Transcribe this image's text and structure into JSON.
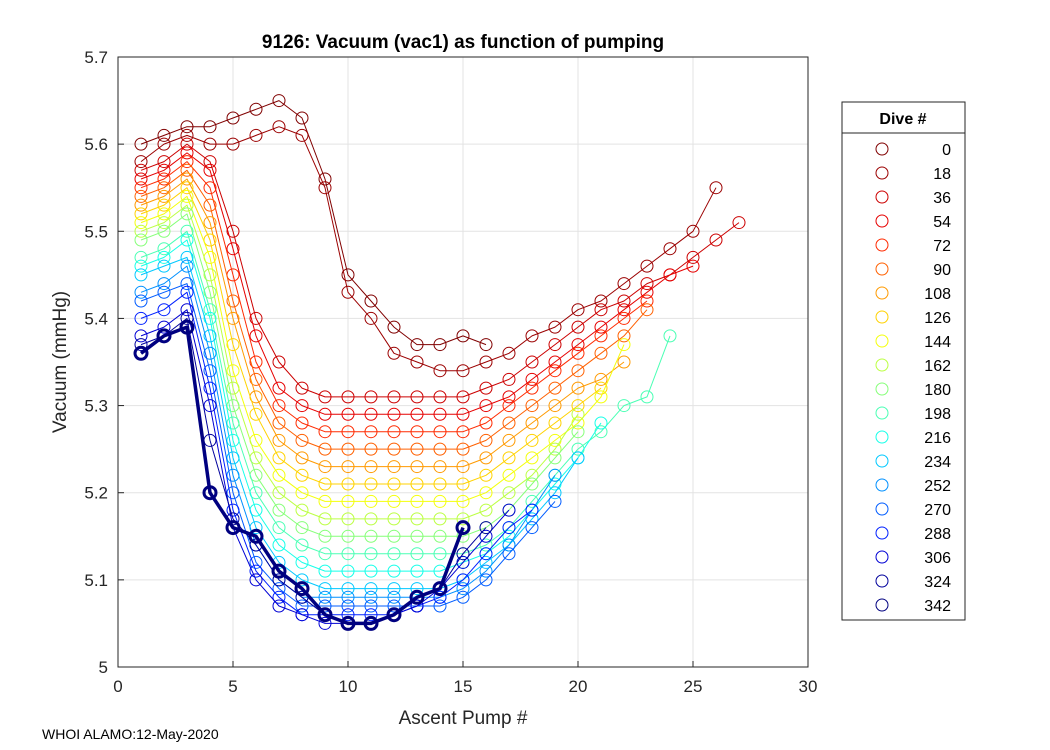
{
  "chart_data": {
    "type": "line",
    "title": "9126: Vacuum (vac1) as function of pumping",
    "xlabel": "Ascent Pump #",
    "ylabel": "Vacuum (mmHg)",
    "xlim": [
      0,
      30
    ],
    "ylim": [
      5,
      5.7
    ],
    "xticks": [
      0,
      5,
      10,
      15,
      20,
      25,
      30
    ],
    "yticks": [
      5,
      5.1,
      5.2,
      5.3,
      5.4,
      5.5,
      5.6,
      5.7
    ],
    "ytick_labels": [
      "5",
      "5.1",
      "5.2",
      "5.3",
      "5.4",
      "5.5",
      "5.6",
      "5.7"
    ],
    "grid": true,
    "legend_position": "right",
    "legend": {
      "title": "Dive #",
      "entries": [
        "0",
        "18",
        "36",
        "54",
        "72",
        "90",
        "108",
        "126",
        "144",
        "162",
        "180",
        "198",
        "216",
        "234",
        "252",
        "270",
        "288",
        "306",
        "324",
        "342"
      ],
      "colors": [
        "#800000",
        "#9b0000",
        "#cc0000",
        "#e60000",
        "#ff2a00",
        "#ff6000",
        "#ff9a00",
        "#ffd200",
        "#f4ff0b",
        "#bcff43",
        "#86ff79",
        "#4affb4",
        "#16ffe9",
        "#00c8ff",
        "#0090ff",
        "#005cff",
        "#0020ff",
        "#0000d4",
        "#00009c",
        "#000080"
      ]
    },
    "marker": "open-circle",
    "series": [
      {
        "name": "0",
        "color": "#800000",
        "x": [
          1,
          2,
          3,
          4,
          5,
          6,
          7,
          8,
          9,
          10,
          11,
          12,
          13,
          14,
          15,
          16
        ],
        "y": [
          5.6,
          5.61,
          5.62,
          5.62,
          5.63,
          5.64,
          5.65,
          5.63,
          5.56,
          5.45,
          5.42,
          5.39,
          5.37,
          5.37,
          5.38,
          5.37
        ]
      },
      {
        "name": "18",
        "color": "#9b0000",
        "x": [
          1,
          2,
          3,
          4,
          5,
          6,
          7,
          8,
          9,
          10,
          11,
          12,
          13,
          14,
          15,
          16,
          17,
          18,
          19,
          20,
          21,
          22,
          23,
          24,
          25,
          26
        ],
        "y": [
          5.58,
          5.6,
          5.61,
          5.6,
          5.6,
          5.61,
          5.62,
          5.61,
          5.55,
          5.43,
          5.4,
          5.36,
          5.35,
          5.34,
          5.34,
          5.35,
          5.36,
          5.38,
          5.39,
          5.41,
          5.42,
          5.44,
          5.46,
          5.48,
          5.5,
          5.55
        ]
      },
      {
        "name": "36",
        "color": "#cc0000",
        "x": [
          1,
          2,
          3,
          4,
          5,
          6,
          7,
          8,
          9,
          10,
          11,
          12,
          13,
          14,
          15,
          16,
          17,
          18,
          19,
          20,
          21,
          22,
          23,
          24,
          25,
          26,
          27
        ],
        "y": [
          5.57,
          5.58,
          5.6,
          5.58,
          5.5,
          5.4,
          5.35,
          5.32,
          5.31,
          5.31,
          5.31,
          5.31,
          5.31,
          5.31,
          5.31,
          5.32,
          5.33,
          5.35,
          5.37,
          5.39,
          5.41,
          5.42,
          5.44,
          5.45,
          5.47,
          5.49,
          5.51
        ]
      },
      {
        "name": "54",
        "color": "#e60000",
        "x": [
          1,
          2,
          3,
          4,
          5,
          6,
          7,
          8,
          9,
          10,
          11,
          12,
          13,
          14,
          15,
          16,
          17,
          18,
          19,
          20,
          21,
          22,
          23,
          24,
          25
        ],
        "y": [
          5.56,
          5.57,
          5.59,
          5.57,
          5.48,
          5.38,
          5.32,
          5.3,
          5.29,
          5.29,
          5.29,
          5.29,
          5.29,
          5.29,
          5.29,
          5.3,
          5.31,
          5.33,
          5.35,
          5.37,
          5.39,
          5.41,
          5.43,
          5.45,
          5.46
        ]
      },
      {
        "name": "72",
        "color": "#ff2a00",
        "x": [
          1,
          2,
          3,
          4,
          5,
          6,
          7,
          8,
          9,
          10,
          11,
          12,
          13,
          14,
          15,
          16,
          17,
          18,
          19,
          20,
          21,
          22,
          23
        ],
        "y": [
          5.55,
          5.56,
          5.58,
          5.55,
          5.45,
          5.35,
          5.3,
          5.28,
          5.27,
          5.27,
          5.27,
          5.27,
          5.27,
          5.27,
          5.27,
          5.28,
          5.3,
          5.32,
          5.34,
          5.36,
          5.38,
          5.4,
          5.42
        ]
      },
      {
        "name": "90",
        "color": "#ff6000",
        "x": [
          1,
          2,
          3,
          4,
          5,
          6,
          7,
          8,
          9,
          10,
          11,
          12,
          13,
          14,
          15,
          16,
          17,
          18,
          19,
          20,
          21,
          22,
          23
        ],
        "y": [
          5.54,
          5.55,
          5.57,
          5.53,
          5.42,
          5.33,
          5.28,
          5.26,
          5.25,
          5.25,
          5.25,
          5.25,
          5.25,
          5.25,
          5.25,
          5.26,
          5.28,
          5.3,
          5.32,
          5.34,
          5.36,
          5.38,
          5.41
        ]
      },
      {
        "name": "108",
        "color": "#ff9a00",
        "x": [
          1,
          2,
          3,
          4,
          5,
          6,
          7,
          8,
          9,
          10,
          11,
          12,
          13,
          14,
          15,
          16,
          17,
          18,
          19,
          20,
          21,
          22
        ],
        "y": [
          5.53,
          5.54,
          5.56,
          5.51,
          5.4,
          5.31,
          5.26,
          5.24,
          5.23,
          5.23,
          5.23,
          5.23,
          5.23,
          5.23,
          5.23,
          5.24,
          5.26,
          5.28,
          5.3,
          5.32,
          5.33,
          5.35
        ]
      },
      {
        "name": "126",
        "color": "#ffd200",
        "x": [
          1,
          2,
          3,
          4,
          5,
          6,
          7,
          8,
          9,
          10,
          11,
          12,
          13,
          14,
          15,
          16,
          17,
          18,
          19,
          20,
          21
        ],
        "y": [
          5.52,
          5.53,
          5.55,
          5.49,
          5.37,
          5.29,
          5.24,
          5.22,
          5.21,
          5.21,
          5.21,
          5.21,
          5.21,
          5.21,
          5.21,
          5.22,
          5.24,
          5.26,
          5.28,
          5.3,
          5.32
        ]
      },
      {
        "name": "144",
        "color": "#f4ff0b",
        "x": [
          1,
          2,
          3,
          4,
          5,
          6,
          7,
          8,
          9,
          10,
          11,
          12,
          13,
          14,
          15,
          16,
          17,
          18,
          19,
          20,
          21,
          22
        ],
        "y": [
          5.51,
          5.52,
          5.54,
          5.47,
          5.34,
          5.26,
          5.22,
          5.2,
          5.19,
          5.19,
          5.19,
          5.19,
          5.19,
          5.19,
          5.19,
          5.2,
          5.22,
          5.24,
          5.26,
          5.28,
          5.31,
          5.37
        ]
      },
      {
        "name": "162",
        "color": "#bcff43",
        "x": [
          1,
          2,
          3,
          4,
          5,
          6,
          7,
          8,
          9,
          10,
          11,
          12,
          13,
          14,
          15,
          16,
          17,
          18,
          19,
          20
        ],
        "y": [
          5.5,
          5.51,
          5.53,
          5.45,
          5.32,
          5.24,
          5.2,
          5.18,
          5.17,
          5.17,
          5.17,
          5.17,
          5.17,
          5.17,
          5.17,
          5.18,
          5.2,
          5.22,
          5.25,
          5.29
        ]
      },
      {
        "name": "180",
        "color": "#86ff79",
        "x": [
          1,
          2,
          3,
          4,
          5,
          6,
          7,
          8,
          9,
          10,
          11,
          12,
          13,
          14,
          15,
          16,
          17,
          18,
          19,
          20
        ],
        "y": [
          5.49,
          5.5,
          5.52,
          5.43,
          5.3,
          5.22,
          5.18,
          5.16,
          5.15,
          5.15,
          5.15,
          5.15,
          5.15,
          5.15,
          5.15,
          5.16,
          5.18,
          5.21,
          5.24,
          5.27
        ]
      },
      {
        "name": "198",
        "color": "#4affb4",
        "x": [
          1,
          2,
          3,
          4,
          5,
          6,
          7,
          8,
          9,
          10,
          11,
          12,
          13,
          14,
          15,
          16,
          17,
          18,
          19,
          20,
          21,
          22,
          23,
          24
        ],
        "y": [
          5.47,
          5.48,
          5.5,
          5.41,
          5.28,
          5.2,
          5.16,
          5.14,
          5.13,
          5.13,
          5.13,
          5.13,
          5.13,
          5.13,
          5.13,
          5.14,
          5.16,
          5.19,
          5.22,
          5.25,
          5.27,
          5.3,
          5.31,
          5.38
        ]
      },
      {
        "name": "216",
        "color": "#16ffe9",
        "x": [
          1,
          2,
          3,
          4,
          5,
          6,
          7,
          8,
          9,
          10,
          11,
          12,
          13,
          14,
          15,
          16,
          17,
          18,
          19,
          20,
          21
        ],
        "y": [
          5.46,
          5.47,
          5.49,
          5.4,
          5.26,
          5.18,
          5.14,
          5.12,
          5.11,
          5.11,
          5.11,
          5.11,
          5.11,
          5.11,
          5.12,
          5.13,
          5.15,
          5.18,
          5.21,
          5.24,
          5.28
        ]
      },
      {
        "name": "234",
        "color": "#00c8ff",
        "x": [
          1,
          2,
          3,
          4,
          5,
          6,
          7,
          8,
          9,
          10,
          11,
          12,
          13,
          14,
          15,
          16,
          17,
          18,
          19,
          20
        ],
        "y": [
          5.45,
          5.46,
          5.47,
          5.38,
          5.24,
          5.16,
          5.12,
          5.1,
          5.09,
          5.09,
          5.09,
          5.09,
          5.09,
          5.09,
          5.1,
          5.12,
          5.14,
          5.17,
          5.2,
          5.24
        ]
      },
      {
        "name": "252",
        "color": "#0090ff",
        "x": [
          1,
          2,
          3,
          4,
          5,
          6,
          7,
          8,
          9,
          10,
          11,
          12,
          13,
          14,
          15,
          16,
          17,
          18,
          19
        ],
        "y": [
          5.43,
          5.44,
          5.46,
          5.36,
          5.22,
          5.14,
          5.1,
          5.08,
          5.08,
          5.08,
          5.08,
          5.08,
          5.08,
          5.08,
          5.09,
          5.11,
          5.14,
          5.18,
          5.22
        ]
      },
      {
        "name": "270",
        "color": "#005cff",
        "x": [
          1,
          2,
          3,
          4,
          5,
          6,
          7,
          8,
          9,
          10,
          11,
          12,
          13,
          14,
          15,
          16,
          17,
          18,
          19
        ],
        "y": [
          5.42,
          5.43,
          5.44,
          5.34,
          5.2,
          5.12,
          5.09,
          5.07,
          5.07,
          5.07,
          5.07,
          5.07,
          5.07,
          5.07,
          5.08,
          5.1,
          5.13,
          5.16,
          5.19
        ]
      },
      {
        "name": "288",
        "color": "#0020ff",
        "x": [
          1,
          2,
          3,
          4,
          5,
          6,
          7,
          8,
          9,
          10,
          11,
          12,
          13,
          14,
          15,
          16,
          17,
          18
        ],
        "y": [
          5.4,
          5.41,
          5.43,
          5.32,
          5.18,
          5.11,
          5.08,
          5.06,
          5.06,
          5.06,
          5.06,
          5.06,
          5.07,
          5.08,
          5.1,
          5.13,
          5.16,
          5.18
        ]
      },
      {
        "name": "306",
        "color": "#0000d4",
        "x": [
          1,
          2,
          3,
          4,
          5,
          6,
          7,
          8,
          9,
          10,
          11,
          12,
          13,
          14,
          15,
          16,
          17
        ],
        "y": [
          5.38,
          5.39,
          5.41,
          5.3,
          5.16,
          5.1,
          5.07,
          5.06,
          5.05,
          5.05,
          5.05,
          5.06,
          5.07,
          5.09,
          5.12,
          5.15,
          5.18
        ]
      },
      {
        "name": "324",
        "color": "#00009c",
        "x": [
          1,
          2,
          3,
          4,
          5,
          6,
          7,
          8,
          9,
          10,
          11,
          12,
          13,
          14,
          15,
          16
        ],
        "y": [
          5.37,
          5.38,
          5.4,
          5.26,
          5.17,
          5.14,
          5.1,
          5.08,
          5.06,
          5.05,
          5.05,
          5.06,
          5.08,
          5.09,
          5.13,
          5.16
        ]
      },
      {
        "name": "342",
        "color": "#000080",
        "highlight": true,
        "x": [
          1,
          2,
          3,
          4,
          5,
          6,
          7,
          8,
          9,
          10,
          11,
          12,
          13,
          14,
          15
        ],
        "y": [
          5.36,
          5.38,
          5.39,
          5.2,
          5.16,
          5.15,
          5.11,
          5.09,
          5.06,
          5.05,
          5.05,
          5.06,
          5.08,
          5.09,
          5.16
        ]
      }
    ]
  },
  "footer": "WHOI ALAMO:12-May-2020"
}
